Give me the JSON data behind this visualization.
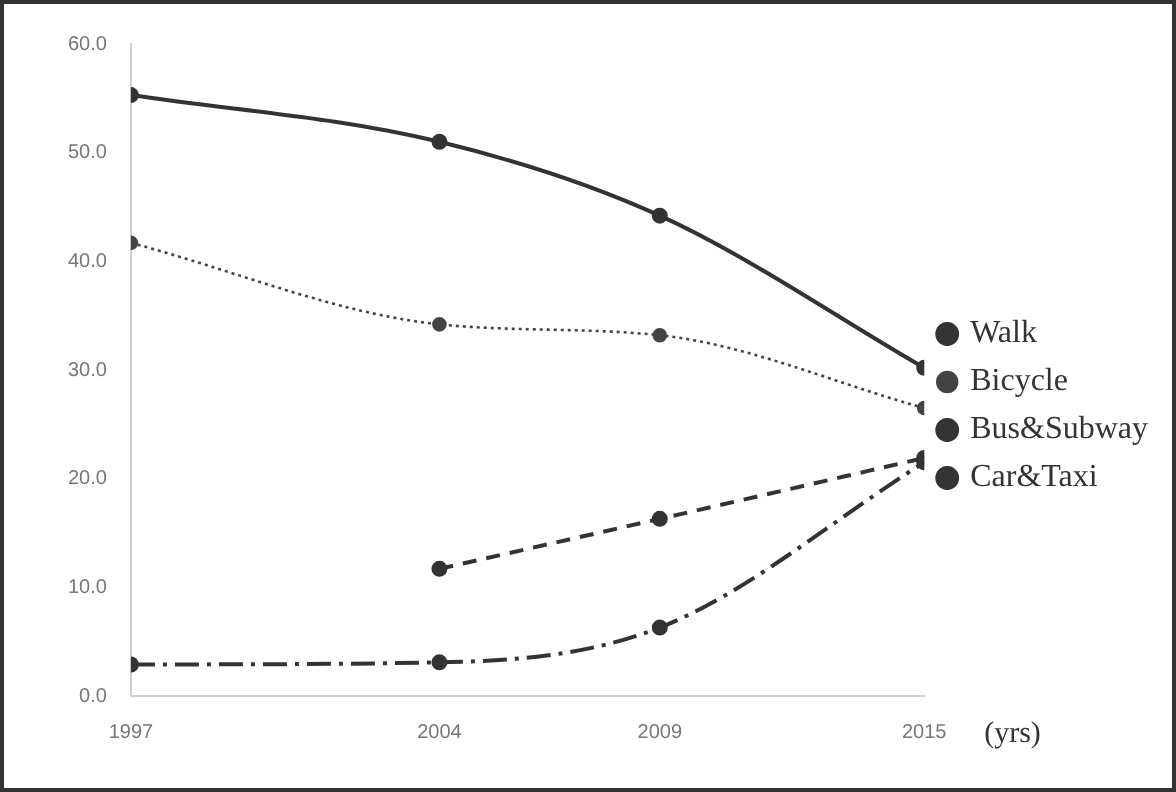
{
  "chart_data": {
    "type": "line",
    "xlabel": "(yrs)",
    "x": [
      1997,
      2004,
      2009,
      2015
    ],
    "xlim": [
      1997,
      2015
    ],
    "xticks": [
      1997,
      2004,
      2009,
      2015
    ],
    "ylim": [
      0,
      60
    ],
    "yticks": [
      {
        "value": 0,
        "label": "0.0"
      },
      {
        "value": 10,
        "label": "10.0"
      },
      {
        "value": 20,
        "label": "20.0"
      },
      {
        "value": 30,
        "label": "30.0"
      },
      {
        "value": 40,
        "label": "40.0"
      },
      {
        "value": 50,
        "label": "50.0"
      },
      {
        "value": 60,
        "label": "60.0"
      }
    ],
    "grid": false,
    "legend": "right",
    "marker": "circle",
    "series": [
      {
        "name": "Walk",
        "color": "#333333",
        "line_style": "solid",
        "values": [
          55.3,
          51.0,
          44.2,
          30.2
        ]
      },
      {
        "name": "Bicycle",
        "color": "#444444",
        "line_style": "dotted",
        "values": [
          41.7,
          34.2,
          33.2,
          26.5
        ]
      },
      {
        "name": "Bus&Subway",
        "color": "#333333",
        "line_style": "dashdot",
        "values": [
          2.9,
          3.1,
          6.3,
          21.5
        ]
      },
      {
        "name": "Car&Taxi",
        "color": "#333333",
        "line_style": "dashed",
        "values": [
          null,
          11.7,
          16.3,
          21.9
        ]
      }
    ]
  }
}
